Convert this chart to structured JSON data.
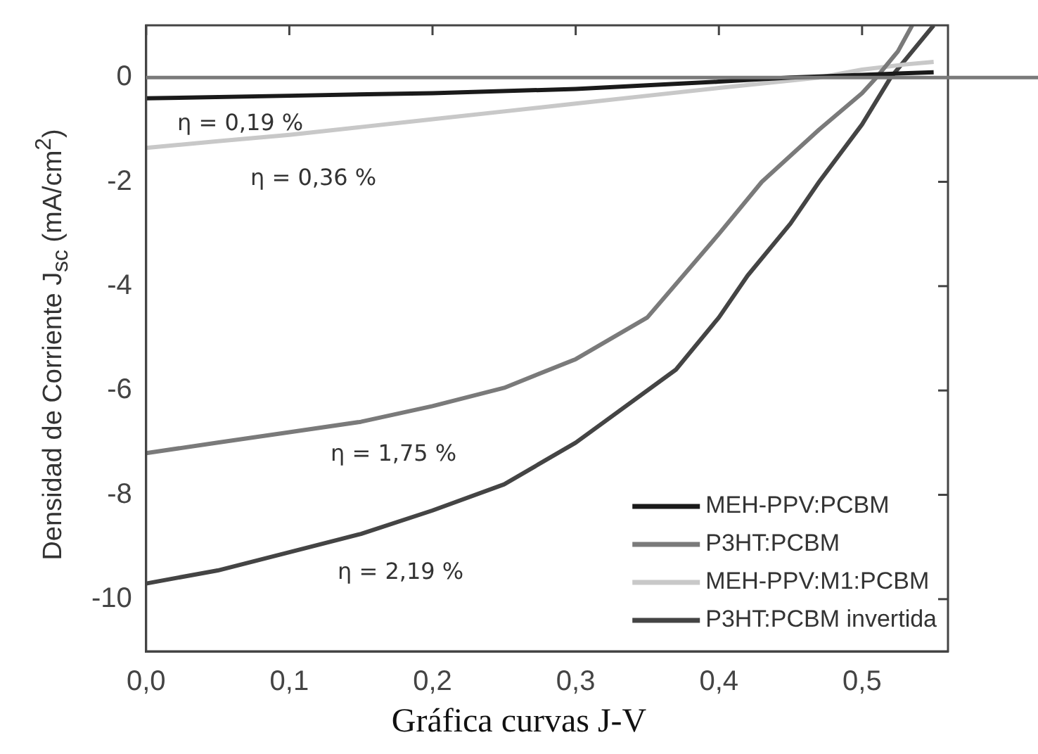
{
  "chart_data": {
    "type": "line",
    "ylabel": "Densidad de Corriente J$_{sc}$ (mA/cm$^{2}$)",
    "xlim": [
      0,
      0.56
    ],
    "ylim": [
      -11,
      1
    ],
    "xticks": [
      {
        "value": 0,
        "label": "0,0"
      },
      {
        "value": 0.1,
        "label": "0,1"
      },
      {
        "value": 0.2,
        "label": "0,2"
      },
      {
        "value": 0.3,
        "label": "0,3"
      },
      {
        "value": 0.4,
        "label": "0,4"
      },
      {
        "value": 0.5,
        "label": "0,5"
      }
    ],
    "yticks": [
      -10,
      -8,
      -6,
      -4,
      -2,
      0
    ],
    "grid": false,
    "legend": "bottom right",
    "marker": "none",
    "line_style": "solid",
    "series": [
      {
        "name": "MEH-PPV:PCBM",
        "color": "#1a1a1a",
        "x": [
          0,
          0.1,
          0.2,
          0.3,
          0.35,
          0.4,
          0.45,
          0.5,
          0.55
        ],
        "values": [
          -0.4,
          -0.35,
          -0.3,
          -0.22,
          -0.15,
          -0.08,
          0,
          0.05,
          0.1
        ]
      },
      {
        "name": "P3HT:PCBM",
        "color": "#7a7a7a",
        "x": [
          0,
          0.05,
          0.1,
          0.15,
          0.2,
          0.25,
          0.3,
          0.35,
          0.4,
          0.43,
          0.47,
          0.5,
          0.51,
          0.525,
          0.535
        ],
        "values": [
          -7.2,
          -7.0,
          -6.8,
          -6.6,
          -6.3,
          -5.95,
          -5.4,
          -4.6,
          -3.0,
          -2.0,
          -1.0,
          -0.3,
          0,
          0.5,
          1
        ]
      },
      {
        "name": "MEH-PPV:M1:PCBM",
        "color": "#c8c8c8",
        "x": [
          0,
          0.05,
          0.1,
          0.15,
          0.2,
          0.25,
          0.3,
          0.35,
          0.4,
          0.45,
          0.47,
          0.5,
          0.53,
          0.55
        ],
        "values": [
          -1.35,
          -1.22,
          -1.1,
          -0.95,
          -0.8,
          -0.65,
          -0.5,
          -0.35,
          -0.2,
          -0.06,
          0,
          0.15,
          0.25,
          0.3
        ]
      },
      {
        "name": "P3HT:PCBM invertida",
        "color": "#444444",
        "x": [
          0,
          0.05,
          0.1,
          0.15,
          0.2,
          0.25,
          0.3,
          0.33,
          0.37,
          0.4,
          0.42,
          0.45,
          0.47,
          0.5,
          0.52,
          0.535,
          0.55
        ],
        "values": [
          -9.7,
          -9.45,
          -9.1,
          -8.75,
          -8.3,
          -7.8,
          -7.0,
          -6.4,
          -5.6,
          -4.6,
          -3.8,
          -2.8,
          -2.0,
          -0.9,
          0,
          0.5,
          1
        ]
      }
    ],
    "ref_lines": [
      {
        "axis": "y",
        "value": 0,
        "color": "#7a7a7a"
      }
    ],
    "annotations": [
      "η = 0,19 %",
      "η = 0,36 %",
      "η = 1,75 %",
      "η = 2,19 %",
      "Gráfica curvas J-V"
    ]
  }
}
